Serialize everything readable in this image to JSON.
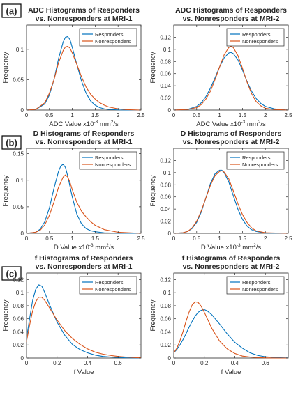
{
  "panel_labels": [
    "(a)",
    "(b)",
    "(c)"
  ],
  "colors": {
    "Responders": "#0072BD",
    "Nonresponders": "#D95319"
  },
  "chart_data": [
    {
      "type": "line",
      "title": [
        "ADC Histograms of Responders",
        "vs. Nonresponders at MRI-1"
      ],
      "xlabel": "ADC Value x10⁻³ mm²/s",
      "ylabel": "Frequency",
      "xlim": [
        0,
        2.5
      ],
      "ylim": [
        0,
        0.14
      ],
      "xticks": [
        0,
        0.5,
        1,
        1.5,
        2,
        2.5
      ],
      "xtick_labels": [
        "0",
        "0.5",
        "1",
        "1.5",
        "2",
        "2.5"
      ],
      "yticks": [
        0,
        0.05,
        0.1
      ],
      "ytick_labels": [
        "0",
        "0.05",
        "0.1"
      ],
      "grid": false,
      "legend": "top-right",
      "series": [
        {
          "name": "Responders",
          "x": [
            0,
            0.2,
            0.4,
            0.5,
            0.6,
            0.7,
            0.8,
            0.85,
            0.9,
            0.95,
            1.0,
            1.1,
            1.2,
            1.3,
            1.4,
            1.5,
            1.6,
            1.7,
            1.8,
            2.0,
            2.2,
            2.5
          ],
          "y": [
            0,
            0.001,
            0.01,
            0.025,
            0.05,
            0.085,
            0.112,
            0.12,
            0.121,
            0.116,
            0.103,
            0.075,
            0.048,
            0.028,
            0.015,
            0.008,
            0.004,
            0.002,
            0.001,
            0.0003,
            0.0001,
            0
          ]
        },
        {
          "name": "Nonresponders",
          "x": [
            0,
            0.2,
            0.4,
            0.5,
            0.6,
            0.7,
            0.8,
            0.85,
            0.9,
            0.95,
            1.0,
            1.1,
            1.2,
            1.3,
            1.4,
            1.5,
            1.6,
            1.7,
            1.8,
            2.0,
            2.2,
            2.5
          ],
          "y": [
            0,
            0.001,
            0.012,
            0.028,
            0.05,
            0.078,
            0.098,
            0.104,
            0.105,
            0.102,
            0.094,
            0.075,
            0.055,
            0.038,
            0.026,
            0.018,
            0.012,
            0.008,
            0.005,
            0.002,
            0.0006,
            0
          ]
        }
      ]
    },
    {
      "type": "line",
      "title": [
        "ADC Histograms of Responders",
        "vs. Nonresponders at MRI-2"
      ],
      "xlabel": "ADC Value x10⁻³ mm²/s",
      "ylabel": "Frequency",
      "xlim": [
        0,
        2.5
      ],
      "ylim": [
        0,
        0.14
      ],
      "xticks": [
        0,
        0.5,
        1,
        1.5,
        2,
        2.5
      ],
      "xtick_labels": [
        "0",
        "0.5",
        "1",
        "1.5",
        "2",
        "2.5"
      ],
      "yticks": [
        0,
        0.02,
        0.04,
        0.06,
        0.08,
        0.1,
        0.12
      ],
      "ytick_labels": [
        "0",
        "0.02",
        "0.04",
        "0.06",
        "0.08",
        "0.1",
        "0.12"
      ],
      "grid": false,
      "legend": "top-right",
      "series": [
        {
          "name": "Responders",
          "x": [
            0,
            0.3,
            0.5,
            0.6,
            0.7,
            0.8,
            0.9,
            1.0,
            1.1,
            1.2,
            1.25,
            1.3,
            1.4,
            1.5,
            1.6,
            1.7,
            1.8,
            1.9,
            2.0,
            2.2,
            2.5
          ],
          "y": [
            0,
            0.001,
            0.006,
            0.012,
            0.022,
            0.036,
            0.053,
            0.071,
            0.086,
            0.094,
            0.095,
            0.093,
            0.083,
            0.066,
            0.047,
            0.031,
            0.019,
            0.011,
            0.006,
            0.002,
            0
          ]
        },
        {
          "name": "Nonresponders",
          "x": [
            0,
            0.3,
            0.5,
            0.6,
            0.7,
            0.8,
            0.9,
            1.0,
            1.1,
            1.2,
            1.25,
            1.3,
            1.4,
            1.5,
            1.6,
            1.7,
            1.8,
            1.9,
            2.0,
            2.2,
            2.5
          ],
          "y": [
            0,
            0.001,
            0.004,
            0.009,
            0.018,
            0.031,
            0.05,
            0.071,
            0.091,
            0.103,
            0.105,
            0.103,
            0.09,
            0.069,
            0.046,
            0.027,
            0.014,
            0.007,
            0.003,
            0.001,
            0
          ]
        }
      ]
    },
    {
      "type": "line",
      "title": [
        "D Histograms of Responders",
        "vs. Nonresponders at MRI-1"
      ],
      "xlabel": "D Value x10⁻³ mm²/s",
      "ylabel": "Frequency",
      "xlim": [
        0,
        2.5
      ],
      "ylim": [
        0,
        0.16
      ],
      "xticks": [
        0,
        0.5,
        1,
        1.5,
        2,
        2.5
      ],
      "xtick_labels": [
        "0",
        "0.5",
        "1",
        "1.5",
        "2",
        "2.5"
      ],
      "yticks": [
        0,
        0.05,
        0.1,
        0.15
      ],
      "ytick_labels": [
        "0",
        "0.05",
        "0.1",
        "0.15"
      ],
      "grid": false,
      "legend": "top-right",
      "series": [
        {
          "name": "Responders",
          "x": [
            0,
            0.2,
            0.3,
            0.4,
            0.5,
            0.6,
            0.7,
            0.75,
            0.8,
            0.85,
            0.9,
            1.0,
            1.1,
            1.2,
            1.3,
            1.4,
            1.5,
            1.7,
            2.0,
            2.5
          ],
          "y": [
            0,
            0.002,
            0.008,
            0.022,
            0.048,
            0.085,
            0.117,
            0.127,
            0.13,
            0.124,
            0.108,
            0.068,
            0.036,
            0.018,
            0.009,
            0.005,
            0.003,
            0.001,
            0.0002,
            0
          ]
        },
        {
          "name": "Nonresponders",
          "x": [
            0,
            0.2,
            0.3,
            0.4,
            0.5,
            0.6,
            0.7,
            0.8,
            0.85,
            0.9,
            0.95,
            1.0,
            1.1,
            1.2,
            1.3,
            1.4,
            1.5,
            1.7,
            2.0,
            2.5
          ],
          "y": [
            0,
            0.002,
            0.006,
            0.016,
            0.034,
            0.059,
            0.087,
            0.106,
            0.11,
            0.106,
            0.096,
            0.082,
            0.058,
            0.042,
            0.031,
            0.022,
            0.015,
            0.007,
            0.002,
            0
          ]
        }
      ]
    },
    {
      "type": "line",
      "title": [
        "D Histograms of Responders",
        "vs. Nonresponders at MRI-2"
      ],
      "xlabel": "D Value x10⁻³ mm²/s",
      "ylabel": "Frequency",
      "xlim": [
        0,
        2.5
      ],
      "ylim": [
        0,
        0.14
      ],
      "xticks": [
        0,
        0.5,
        1,
        1.5,
        2,
        2.5
      ],
      "xtick_labels": [
        "0",
        "0.5",
        "1",
        "1.5",
        "2",
        "2.5"
      ],
      "yticks": [
        0,
        0.02,
        0.04,
        0.06,
        0.08,
        0.1,
        0.12
      ],
      "ytick_labels": [
        "0",
        "0.02",
        "0.04",
        "0.06",
        "0.08",
        "0.1",
        "0.12"
      ],
      "grid": false,
      "legend": "top-right",
      "series": [
        {
          "name": "Responders",
          "x": [
            0,
            0.2,
            0.3,
            0.4,
            0.5,
            0.6,
            0.7,
            0.8,
            0.9,
            1.0,
            1.05,
            1.1,
            1.2,
            1.3,
            1.4,
            1.5,
            1.6,
            1.7,
            1.8,
            2.0,
            2.5
          ],
          "y": [
            0,
            0.001,
            0.003,
            0.008,
            0.018,
            0.035,
            0.058,
            0.082,
            0.098,
            0.104,
            0.104,
            0.1,
            0.085,
            0.062,
            0.04,
            0.023,
            0.012,
            0.006,
            0.003,
            0.0005,
            0
          ]
        },
        {
          "name": "Nonresponders",
          "x": [
            0,
            0.2,
            0.3,
            0.4,
            0.5,
            0.6,
            0.7,
            0.8,
            0.9,
            1.0,
            1.05,
            1.1,
            1.2,
            1.3,
            1.4,
            1.5,
            1.6,
            1.7,
            1.8,
            2.0,
            2.5
          ],
          "y": [
            0,
            0.001,
            0.003,
            0.009,
            0.02,
            0.037,
            0.058,
            0.079,
            0.095,
            0.102,
            0.103,
            0.101,
            0.09,
            0.07,
            0.049,
            0.031,
            0.018,
            0.009,
            0.004,
            0.001,
            0
          ]
        }
      ]
    },
    {
      "type": "line",
      "title": [
        "f Histograms of Responders",
        "vs. Nonresponders at MRI-1"
      ],
      "xlabel": "f Value",
      "ylabel": "Frequency",
      "xlim": [
        0,
        0.75
      ],
      "ylim": [
        0,
        0.13
      ],
      "xticks": [
        0,
        0.2,
        0.4,
        0.6
      ],
      "xtick_labels": [
        "0",
        "0.2",
        "0.4",
        "0.6"
      ],
      "yticks": [
        0,
        0.02,
        0.04,
        0.06,
        0.08,
        0.1,
        0.12
      ],
      "ytick_labels": [
        "0",
        "0.02",
        "0.04",
        "0.06",
        "0.08",
        "0.1",
        "0.12"
      ],
      "grid": false,
      "legend": "top-right",
      "series": [
        {
          "name": "Responders",
          "x": [
            0,
            0.02,
            0.04,
            0.06,
            0.08,
            0.1,
            0.12,
            0.15,
            0.2,
            0.25,
            0.3,
            0.35,
            0.4,
            0.45,
            0.5,
            0.55,
            0.6,
            0.65,
            0.7,
            0.75
          ],
          "y": [
            0.03,
            0.06,
            0.088,
            0.105,
            0.112,
            0.11,
            0.1,
            0.082,
            0.055,
            0.035,
            0.021,
            0.013,
            0.008,
            0.0045,
            0.0025,
            0.0015,
            0.0008,
            0.0004,
            0.0002,
            0
          ]
        },
        {
          "name": "Nonresponders",
          "x": [
            0,
            0.02,
            0.04,
            0.06,
            0.08,
            0.1,
            0.12,
            0.15,
            0.2,
            0.25,
            0.3,
            0.35,
            0.4,
            0.45,
            0.5,
            0.55,
            0.6,
            0.65,
            0.7,
            0.75
          ],
          "y": [
            0.025,
            0.05,
            0.072,
            0.086,
            0.093,
            0.093,
            0.088,
            0.077,
            0.058,
            0.042,
            0.03,
            0.021,
            0.014,
            0.009,
            0.006,
            0.004,
            0.0025,
            0.0015,
            0.0008,
            0.0003
          ]
        }
      ]
    },
    {
      "type": "line",
      "title": [
        "f Histograms of Responders",
        "vs. Nonresponders at MRI-2"
      ],
      "xlabel": "f Value",
      "ylabel": "Frequency",
      "xlim": [
        0,
        0.75
      ],
      "ylim": [
        0,
        0.13
      ],
      "xticks": [
        0,
        0.2,
        0.4,
        0.6
      ],
      "xtick_labels": [
        "0",
        "0.2",
        "0.4",
        "0.6"
      ],
      "yticks": [
        0,
        0.02,
        0.04,
        0.06,
        0.08,
        0.1,
        0.12
      ],
      "ytick_labels": [
        "0",
        "0.02",
        "0.04",
        "0.06",
        "0.08",
        "0.1",
        "0.12"
      ],
      "grid": false,
      "legend": "top-right",
      "series": [
        {
          "name": "Responders",
          "x": [
            0,
            0.02,
            0.04,
            0.06,
            0.08,
            0.1,
            0.12,
            0.14,
            0.16,
            0.18,
            0.2,
            0.22,
            0.25,
            0.3,
            0.35,
            0.4,
            0.45,
            0.5,
            0.55,
            0.6,
            0.65,
            0.7,
            0.75
          ],
          "y": [
            0.008,
            0.013,
            0.02,
            0.028,
            0.037,
            0.047,
            0.056,
            0.064,
            0.07,
            0.073,
            0.074,
            0.072,
            0.066,
            0.052,
            0.037,
            0.024,
            0.015,
            0.008,
            0.004,
            0.002,
            0.001,
            0.0005,
            0.0002
          ]
        },
        {
          "name": "Nonresponders",
          "x": [
            0,
            0.02,
            0.04,
            0.06,
            0.08,
            0.1,
            0.12,
            0.14,
            0.16,
            0.18,
            0.2,
            0.22,
            0.25,
            0.3,
            0.35,
            0.4,
            0.45,
            0.5,
            0.55,
            0.6,
            0.65,
            0.7,
            0.75
          ],
          "y": [
            0.008,
            0.015,
            0.026,
            0.04,
            0.056,
            0.07,
            0.081,
            0.086,
            0.085,
            0.079,
            0.07,
            0.06,
            0.045,
            0.026,
            0.014,
            0.007,
            0.003,
            0.0015,
            0.0007,
            0.0003,
            0.0001,
            0,
            0
          ]
        }
      ]
    }
  ]
}
